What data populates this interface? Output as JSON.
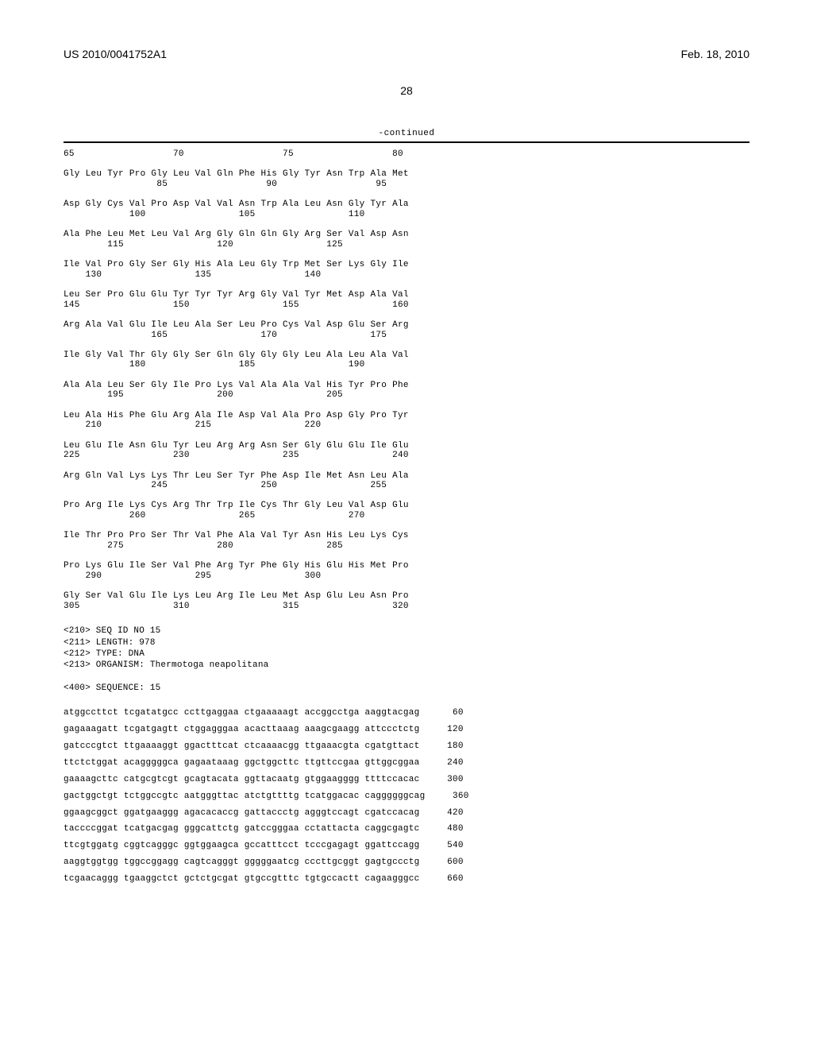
{
  "header": {
    "left": "US 2010/0041752A1",
    "right": "Feb. 18, 2010"
  },
  "page_number": "28",
  "continued_label": "-continued",
  "protein": {
    "pos_first": "65                  70                  75                  80",
    "rows": [
      {
        "aa": "Gly Leu Tyr Pro Gly Leu Val Gln Phe His Gly Tyr Asn Trp Ala Met",
        "nm": "                 85                  90                  95"
      },
      {
        "aa": "Asp Gly Cys Val Pro Asp Val Val Asn Trp Ala Leu Asn Gly Tyr Ala",
        "nm": "            100                 105                 110"
      },
      {
        "aa": "Ala Phe Leu Met Leu Val Arg Gly Gln Gln Gly Arg Ser Val Asp Asn",
        "nm": "        115                 120                 125"
      },
      {
        "aa": "Ile Val Pro Gly Ser Gly His Ala Leu Gly Trp Met Ser Lys Gly Ile",
        "nm": "    130                 135                 140"
      },
      {
        "aa": "Leu Ser Pro Glu Glu Tyr Tyr Tyr Arg Gly Val Tyr Met Asp Ala Val",
        "nm": "145                 150                 155                 160"
      },
      {
        "aa": "Arg Ala Val Glu Ile Leu Ala Ser Leu Pro Cys Val Asp Glu Ser Arg",
        "nm": "                165                 170                 175"
      },
      {
        "aa": "Ile Gly Val Thr Gly Gly Ser Gln Gly Gly Gly Leu Ala Leu Ala Val",
        "nm": "            180                 185                 190"
      },
      {
        "aa": "Ala Ala Leu Ser Gly Ile Pro Lys Val Ala Ala Val His Tyr Pro Phe",
        "nm": "        195                 200                 205"
      },
      {
        "aa": "Leu Ala His Phe Glu Arg Ala Ile Asp Val Ala Pro Asp Gly Pro Tyr",
        "nm": "    210                 215                 220"
      },
      {
        "aa": "Leu Glu Ile Asn Glu Tyr Leu Arg Arg Asn Ser Gly Glu Glu Ile Glu",
        "nm": "225                 230                 235                 240"
      },
      {
        "aa": "Arg Gln Val Lys Lys Thr Leu Ser Tyr Phe Asp Ile Met Asn Leu Ala",
        "nm": "                245                 250                 255"
      },
      {
        "aa": "Pro Arg Ile Lys Cys Arg Thr Trp Ile Cys Thr Gly Leu Val Asp Glu",
        "nm": "            260                 265                 270"
      },
      {
        "aa": "Ile Thr Pro Pro Ser Thr Val Phe Ala Val Tyr Asn His Leu Lys Cys",
        "nm": "        275                 280                 285"
      },
      {
        "aa": "Pro Lys Glu Ile Ser Val Phe Arg Tyr Phe Gly His Glu His Met Pro",
        "nm": "    290                 295                 300"
      },
      {
        "aa": "Gly Ser Val Glu Ile Lys Leu Arg Ile Leu Met Asp Glu Leu Asn Pro",
        "nm": "305                 310                 315                 320"
      }
    ]
  },
  "meta": {
    "lines": [
      "<210> SEQ ID NO 15",
      "<211> LENGTH: 978",
      "<212> TYPE: DNA",
      "<213> ORGANISM: Thermotoga neapolitana",
      "",
      "<400> SEQUENCE: 15"
    ]
  },
  "dna": {
    "lines": [
      {
        "seq": "atggccttct tcgatatgcc ccttgaggaa ctgaaaaagt accggcctga aaggtacgag",
        "pos": "60"
      },
      {
        "seq": "gagaaagatt tcgatgagtt ctggagggaa acacttaaag aaagcgaagg attccctctg",
        "pos": "120"
      },
      {
        "seq": "gatcccgtct ttgaaaaggt ggactttcat ctcaaaacgg ttgaaacgta cgatgttact",
        "pos": "180"
      },
      {
        "seq": "ttctctggat acagggggca gagaataaag ggctggcttc ttgttccgaa gttggcggaa",
        "pos": "240"
      },
      {
        "seq": "gaaaagcttc catgcgtcgt gcagtacata ggttacaatg gtggaagggg ttttccacac",
        "pos": "300"
      },
      {
        "seq": "gactggctgt tctggccgtc aatgggttac atctgttttg tcatggacac caggggggcag",
        "pos": "360"
      },
      {
        "seq": "ggaagcggct ggatgaaggg agacacaccg gattaccctg agggtccagt cgatccacag",
        "pos": "420"
      },
      {
        "seq": "taccccggat tcatgacgag gggcattctg gatccgggaa cctattacta caggcgagtc",
        "pos": "480"
      },
      {
        "seq": "ttcgtggatg cggtcagggc ggtggaagca gccatttcct tcccgagagt ggattccagg",
        "pos": "540"
      },
      {
        "seq": "aaggtggtgg tggccggagg cagtcagggt gggggaatcg cccttgcggt gagtgccctg",
        "pos": "600"
      },
      {
        "seq": "tcgaacaggg tgaaggctct gctctgcgat gtgccgtttc tgtgccactt cagaagggcc",
        "pos": "660"
      }
    ]
  }
}
